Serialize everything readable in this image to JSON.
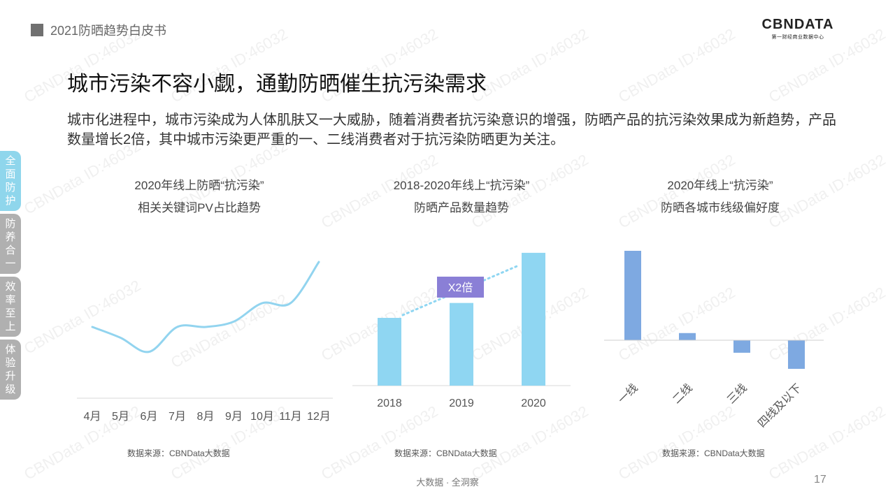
{
  "header": {
    "report_title": "2021防晒趋势白皮书"
  },
  "logo": {
    "brand": "CBNDATA",
    "subtitle": "第一财经商业数据中心"
  },
  "main_title": "城市污染不容小觑，通勤防晒催生抗污染需求",
  "intro": "城市化进程中，城市污染成为人体肌肤又一大威胁，随着消费者抗污染意识的增强，防晒产品的抗污染效果成为新趋势，产品数量增长2倍，其中城市污染更严重的一、二线消费者对于抗污染防晒更为关注。",
  "side_tabs": [
    {
      "label": "全面防护",
      "active": true
    },
    {
      "label": "防养合一",
      "active": false
    },
    {
      "label": "效率至上",
      "active": false
    },
    {
      "label": "体验升级",
      "active": false
    }
  ],
  "charts": {
    "line": {
      "title_line1": "2020年线上防晒“抗污染”",
      "title_line2": "相关关键词PV占比趋势",
      "source": "数据来源：CBNData大数据"
    },
    "bar": {
      "title_line1": "2018-2020年线上“抗污染”",
      "title_line2": "防晒产品数量趋势",
      "source": "数据来源：CBNData大数据",
      "annotation": "X2倍"
    },
    "tier": {
      "title_line1": "2020年线上“抗污染”",
      "title_line2": "防晒各城市线级偏好度",
      "source": "数据来源：CBNData大数据"
    }
  },
  "chart_data": [
    {
      "type": "line",
      "categories": [
        "4月",
        "5月",
        "6月",
        "7月",
        "8月",
        "9月",
        "10月",
        "11月",
        "12月"
      ],
      "values": [
        40,
        30,
        17,
        40,
        40,
        45,
        62,
        62,
        100
      ],
      "color": "#92d4ef"
    },
    {
      "type": "bar",
      "categories": [
        "2018",
        "2019",
        "2020"
      ],
      "values": [
        1.0,
        1.22,
        1.96
      ],
      "color": "#8fd6f2",
      "trend_color": "#8fd6f2",
      "annotation_color": "#8a7fd6"
    },
    {
      "type": "bar",
      "categories": [
        "一线",
        "二线",
        "三线",
        "四线及以下"
      ],
      "values": [
        1.0,
        0.08,
        -0.14,
        -0.32
      ],
      "color": "#7ea9e1"
    }
  ],
  "footer": {
    "text": "大数据 · 全洞察",
    "page_number": "17"
  },
  "watermark_text": "CBNData ID:46032"
}
